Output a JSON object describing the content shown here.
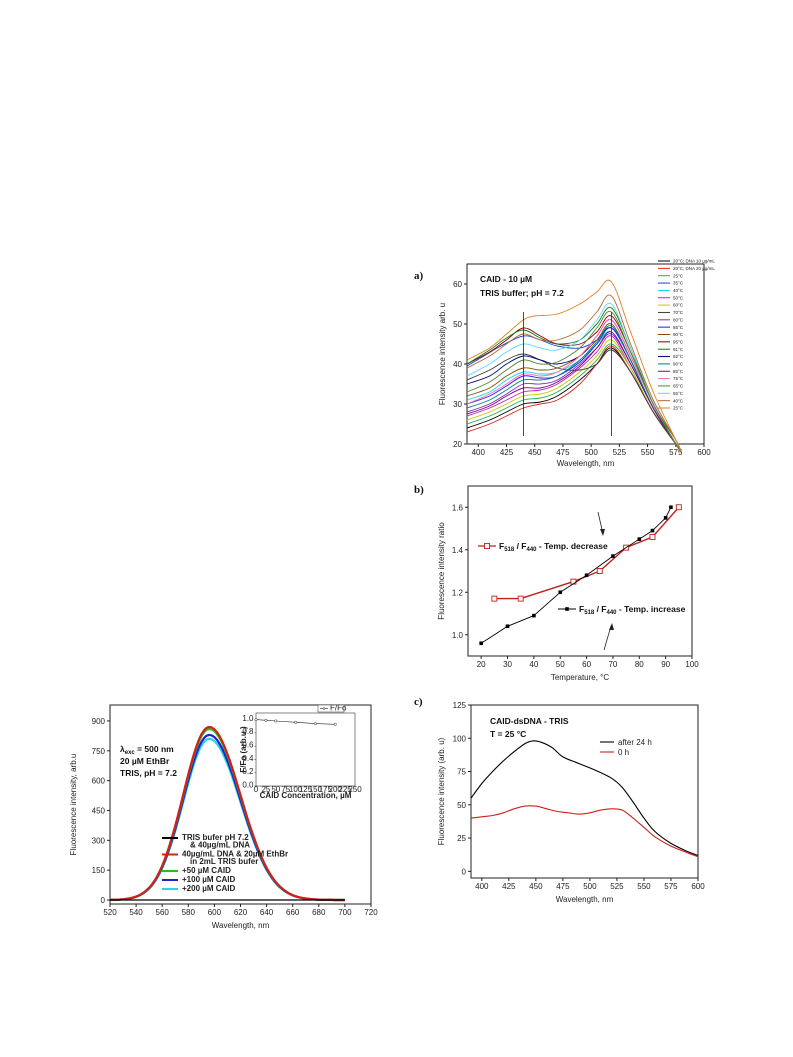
{
  "panel_labels": {
    "a": "a)",
    "b": "b)",
    "c": "c)"
  },
  "chart_data": [
    {
      "id": "a",
      "type": "line",
      "xlabel": "Wavelength, nm",
      "ylabel": "Fluorescence intensity arb. u",
      "xlim": [
        390,
        600
      ],
      "ylim": [
        20,
        65
      ],
      "xticks": [
        "400",
        "425",
        "450",
        "475",
        "500",
        "525",
        "550",
        "575",
        "600"
      ],
      "yticks": [
        "20",
        "30",
        "40",
        "50",
        "60"
      ],
      "annotations": [
        "CAID - 10 µM",
        "TRIS buffer; pH = 7.2"
      ],
      "legend_position": "top-right",
      "legend": [
        "20°C; DNA 10 µg/mL",
        "20°C; DNA 20 µg/mL",
        "25°C",
        "35°C",
        "40°C",
        "50°C",
        "60°C",
        "70°C",
        "80°C",
        "85°C",
        "90°C",
        "95°C",
        "91°C",
        "92°C",
        "90°C",
        "85°C",
        "75°C",
        "65°C",
        "55°C",
        "40°C",
        "25°C"
      ],
      "colors": [
        "#000000",
        "#e0261c",
        "#22b14c",
        "#1f3fd6",
        "#14d3e0",
        "#c21fbf",
        "#c8c800",
        "#3c3c3c",
        "#7b2fbe",
        "#1b1bff",
        "#8a4a00",
        "#8b0000",
        "#0a7a0a",
        "#000080",
        "#008080",
        "#800080",
        "#ff69b4",
        "#4b8a2f",
        "#5fd6ff",
        "#b06a3b",
        "#e08020"
      ],
      "series": [
        {
          "x": [
            390,
            410,
            425,
            440,
            455,
            470,
            490,
            505,
            518,
            535,
            555,
            575,
            580
          ],
          "y": [
            24,
            26,
            28,
            30,
            30.5,
            32,
            36,
            40,
            44,
            38,
            28,
            20,
            18
          ]
        },
        {
          "x": [
            390,
            410,
            425,
            440,
            455,
            470,
            490,
            505,
            518,
            535,
            555,
            575,
            580
          ],
          "y": [
            23,
            25,
            27,
            29,
            30,
            31,
            35,
            40,
            44.5,
            38,
            28,
            20,
            18
          ]
        },
        {
          "x": [
            390,
            410,
            425,
            440,
            455,
            470,
            490,
            505,
            518,
            535,
            555,
            575,
            580
          ],
          "y": [
            25,
            27,
            29,
            31,
            31.5,
            33,
            37,
            41,
            45,
            39,
            28,
            20,
            18
          ]
        },
        {
          "x": [
            390,
            405,
            420,
            440,
            455,
            470,
            490,
            505,
            518,
            535,
            555,
            575,
            580
          ],
          "y": [
            39.5,
            42,
            44.5,
            47,
            46,
            44.5,
            44,
            46,
            49,
            41,
            29,
            20,
            18
          ]
        },
        {
          "x": [
            390,
            410,
            425,
            440,
            455,
            470,
            490,
            505,
            518,
            535,
            555,
            575,
            580
          ],
          "y": [
            31,
            33,
            36,
            38,
            37.5,
            38,
            41,
            45,
            48,
            40,
            29,
            20,
            18
          ]
        },
        {
          "x": [
            390,
            410,
            425,
            440,
            455,
            470,
            490,
            505,
            518,
            535,
            555,
            575,
            580
          ],
          "y": [
            27,
            29,
            31,
            33,
            33.5,
            35,
            39,
            43,
            47,
            39,
            28,
            20,
            18
          ]
        },
        {
          "x": [
            390,
            410,
            425,
            440,
            455,
            470,
            490,
            505,
            518,
            535,
            555,
            575,
            580
          ],
          "y": [
            26,
            28,
            30,
            32,
            32.5,
            34,
            38,
            42,
            46,
            39,
            28,
            20,
            18
          ]
        },
        {
          "x": [
            390,
            410,
            425,
            440,
            455,
            470,
            490,
            505,
            518,
            535,
            555,
            575,
            580
          ],
          "y": [
            36,
            38.5,
            41,
            42.5,
            41,
            39,
            38.5,
            40,
            43.5,
            38,
            28,
            20,
            18
          ]
        },
        {
          "x": [
            390,
            410,
            425,
            440,
            455,
            470,
            490,
            505,
            518,
            535,
            555,
            575,
            580
          ],
          "y": [
            28,
            30,
            32.5,
            35,
            35,
            36,
            40,
            44,
            47.5,
            40,
            29,
            20,
            18
          ]
        },
        {
          "x": [
            390,
            410,
            425,
            440,
            455,
            470,
            490,
            505,
            518,
            535,
            555,
            575,
            580
          ],
          "y": [
            30,
            32,
            34.5,
            37,
            36.5,
            37,
            40.5,
            45,
            49,
            41,
            29,
            20,
            18
          ]
        },
        {
          "x": [
            390,
            410,
            425,
            440,
            455,
            470,
            490,
            505,
            518,
            535,
            555,
            575,
            580
          ],
          "y": [
            32,
            34,
            37,
            39,
            38.5,
            39,
            42,
            46,
            50,
            41,
            29,
            20,
            18
          ]
        },
        {
          "x": [
            390,
            410,
            425,
            440,
            455,
            470,
            490,
            505,
            518,
            535,
            555,
            575,
            580
          ],
          "y": [
            40,
            43,
            46,
            49,
            47,
            45,
            45,
            48,
            52,
            43,
            30,
            20,
            18
          ]
        },
        {
          "x": [
            390,
            410,
            425,
            440,
            455,
            470,
            490,
            505,
            518,
            535,
            555,
            575,
            580
          ],
          "y": [
            40,
            43.5,
            46.5,
            48.5,
            46.5,
            45,
            46,
            50,
            54,
            44,
            30,
            21,
            18
          ]
        },
        {
          "x": [
            390,
            410,
            425,
            440,
            455,
            470,
            490,
            505,
            518,
            535,
            555,
            575,
            580
          ],
          "y": [
            35,
            37,
            40,
            42,
            41,
            40,
            42,
            47,
            51,
            42,
            30,
            20,
            18
          ]
        },
        {
          "x": [
            390,
            410,
            425,
            440,
            455,
            470,
            490,
            505,
            518,
            535,
            555,
            575,
            580
          ],
          "y": [
            29,
            31,
            33.5,
            36,
            36,
            37,
            41,
            45.5,
            49.5,
            41,
            29,
            20,
            18
          ]
        },
        {
          "x": [
            390,
            410,
            425,
            440,
            455,
            470,
            490,
            505,
            518,
            535,
            555,
            575,
            580
          ],
          "y": [
            27.5,
            29.5,
            32,
            34,
            34,
            35.5,
            39.5,
            44,
            48,
            40,
            29,
            20,
            18
          ]
        },
        {
          "x": [
            390,
            410,
            425,
            440,
            455,
            470,
            490,
            505,
            518,
            535,
            555,
            575,
            580
          ],
          "y": [
            30,
            32.5,
            35,
            37.5,
            37,
            38,
            42,
            47,
            51,
            42,
            30,
            20,
            18
          ]
        },
        {
          "x": [
            390,
            410,
            425,
            440,
            455,
            470,
            490,
            505,
            518,
            535,
            555,
            575,
            580
          ],
          "y": [
            33,
            35.5,
            38.5,
            41,
            40,
            40.5,
            44,
            49,
            53,
            43,
            30,
            20,
            18
          ]
        },
        {
          "x": [
            390,
            410,
            425,
            440,
            455,
            470,
            490,
            505,
            518,
            535,
            555,
            575,
            580
          ],
          "y": [
            37,
            40,
            43,
            45,
            44,
            43.5,
            46,
            51,
            55,
            44,
            31,
            21,
            18
          ]
        },
        {
          "x": [
            390,
            410,
            425,
            440,
            455,
            470,
            490,
            505,
            518,
            535,
            555,
            575,
            580
          ],
          "y": [
            39,
            42,
            45,
            47.5,
            46,
            46,
            48.5,
            53,
            57,
            45,
            31,
            21,
            18
          ]
        },
        {
          "x": [
            390,
            410,
            425,
            440,
            450,
            470,
            490,
            505,
            518,
            535,
            555,
            575,
            580
          ],
          "y": [
            41,
            44,
            47.5,
            51,
            52,
            52.5,
            55,
            58,
            60.5,
            48,
            33,
            21,
            18
          ]
        }
      ],
      "vlines": [
        440,
        518
      ]
    },
    {
      "id": "b",
      "type": "line",
      "xlabel": "Temperature, °C",
      "ylabel": "Fluorescence intensity ratio",
      "xlim": [
        15,
        100
      ],
      "ylim": [
        0.9,
        1.7
      ],
      "xticks": [
        "20",
        "30",
        "40",
        "50",
        "60",
        "70",
        "80",
        "90",
        "100"
      ],
      "yticks": [
        "1.0",
        "1.2",
        "1.4",
        "1.6"
      ],
      "series": [
        {
          "name_main": "F",
          "sub1": "518",
          "mid": " / F",
          "sub2": "440",
          "tail": " - Temp. decrease",
          "color": "#c0201b",
          "marker": "open-square",
          "x": [
            25,
            35,
            55,
            65,
            75,
            85,
            95
          ],
          "y": [
            1.17,
            1.17,
            1.25,
            1.3,
            1.41,
            1.46,
            1.6
          ]
        },
        {
          "name_main": "F",
          "sub1": "518",
          "mid": " / F",
          "sub2": "440",
          "tail": " - Temp. increase",
          "color": "#000000",
          "marker": "filled-square",
          "x": [
            20,
            30,
            40,
            50,
            60,
            70,
            80,
            85,
            90,
            92
          ],
          "y": [
            0.96,
            1.04,
            1.09,
            1.2,
            1.28,
            1.37,
            1.45,
            1.49,
            1.55,
            1.6
          ]
        }
      ]
    },
    {
      "id": "c",
      "type": "line",
      "xlabel": "Wavelength, nm",
      "ylabel": "Fluorescence intensity (arb. u)",
      "xlim": [
        390,
        600
      ],
      "ylim": [
        -5,
        125
      ],
      "xticks": [
        "400",
        "425",
        "450",
        "475",
        "500",
        "525",
        "550",
        "575",
        "600"
      ],
      "yticks": [
        "0",
        "25",
        "50",
        "75",
        "100",
        "125"
      ],
      "annotations": [
        "CAID-dsDNA - TRIS",
        "T = 25 °C"
      ],
      "series": [
        {
          "name": "after 24 h",
          "color": "#000000",
          "x": [
            390,
            400,
            410,
            420,
            430,
            440,
            447,
            455,
            465,
            475,
            490,
            505,
            520,
            530,
            540,
            550,
            560,
            575,
            590,
            600
          ],
          "y": [
            55,
            66,
            75,
            83,
            90,
            96,
            98,
            97,
            93,
            86,
            81,
            76,
            70,
            63,
            52,
            40,
            30,
            21,
            15,
            12
          ]
        },
        {
          "name": "0 h",
          "color": "#d0201b",
          "x": [
            390,
            400,
            410,
            420,
            430,
            440,
            450,
            460,
            470,
            480,
            490,
            500,
            510,
            520,
            530,
            540,
            550,
            560,
            575,
            590,
            600
          ],
          "y": [
            40,
            41,
            42,
            44,
            47,
            49,
            49,
            47,
            45,
            44,
            43,
            44,
            46,
            47,
            46,
            40,
            33,
            26,
            19,
            14,
            11
          ]
        }
      ]
    },
    {
      "id": "d",
      "type": "line",
      "xlabel": "Wavelength, nm",
      "ylabel": "Fluorescence intensity, arb.u",
      "xlim": [
        520,
        720
      ],
      "ylim": [
        -20,
        980
      ],
      "xticks": [
        "520",
        "540",
        "560",
        "580",
        "600",
        "620",
        "640",
        "660",
        "680",
        "700",
        "720"
      ],
      "yticks": [
        "0",
        "150",
        "300",
        "450",
        "600",
        "750",
        "900"
      ],
      "annotation_lambda": {
        "main": "λ",
        "sub": "exc",
        "rest": " = 500 nm"
      },
      "annotations": [
        "20 µM EthBr",
        "TRIS, pH = 7.2"
      ],
      "legend": [
        {
          "lines": [
            "TRIS bufer pH 7.2",
            "& 40µg/mL DNA"
          ],
          "color": "#000000"
        },
        {
          "lines": [
            "40µg/mL DNA & 20µM EthBr",
            "in 2mL TRIS bufer"
          ],
          "color": "#d0201b"
        },
        {
          "lines": [
            "+50 µM  CAID"
          ],
          "color": "#22c022"
        },
        {
          "lines": [
            "+100 µM  CAID"
          ],
          "color": "#1f1fd6"
        },
        {
          "lines": [
            "+200 µM  CAID"
          ],
          "color": "#2ad4e0"
        }
      ],
      "peak_x": 596,
      "peaks": [
        0,
        870,
        860,
        830,
        810
      ],
      "inset": {
        "xlabel": "CAID  Concentration, µM",
        "ylabel": "F/Fo (arb.u.)",
        "legend": "F/Fo",
        "xlim": [
          0,
          250
        ],
        "ylim": [
          0,
          1.1
        ],
        "xticks": [
          "0",
          "25",
          "50",
          "75",
          "100",
          "125",
          "150",
          "175",
          "200",
          "225",
          "250"
        ],
        "yticks": [
          "0.0",
          "0.2",
          "0.4",
          "0.6",
          "0.8",
          "1.0"
        ],
        "x": [
          0,
          25,
          50,
          100,
          150,
          200
        ],
        "y": [
          1.0,
          0.99,
          0.98,
          0.96,
          0.94,
          0.93
        ]
      }
    }
  ]
}
